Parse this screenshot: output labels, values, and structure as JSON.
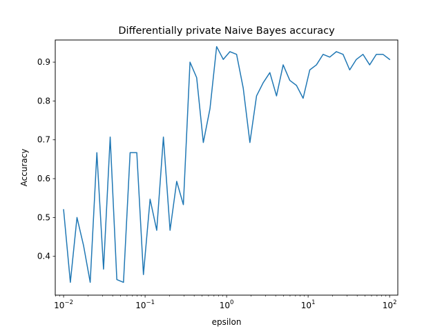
{
  "chart_data": {
    "type": "line",
    "title": "Differentially private Naive Bayes accuracy",
    "xlabel": "epsilon",
    "ylabel": "Accuracy",
    "xscale": "log",
    "xlim": [
      0.0079,
      126
    ],
    "ylim": [
      0.3,
      0.957
    ],
    "grid": false,
    "legend": "none",
    "color": "#1f77b4",
    "x_ticks": [
      {
        "value": 0.01,
        "base": "10",
        "exp": "−2"
      },
      {
        "value": 0.1,
        "base": "10",
        "exp": "−1"
      },
      {
        "value": 1,
        "base": "10",
        "exp": "0"
      },
      {
        "value": 10,
        "base": "10",
        "exp": "1"
      },
      {
        "value": 100,
        "base": "10",
        "exp": "2"
      }
    ],
    "y_ticks": [
      {
        "value": 0.4,
        "label": "0.4"
      },
      {
        "value": 0.5,
        "label": "0.5"
      },
      {
        "value": 0.6,
        "label": "0.6"
      },
      {
        "value": 0.7,
        "label": "0.7"
      },
      {
        "value": 0.8,
        "label": "0.8"
      },
      {
        "value": 0.9,
        "label": "0.9"
      }
    ],
    "series": [
      {
        "x": [
          0.01,
          0.0121,
          0.0146,
          0.0176,
          0.0212,
          0.0256,
          0.0309,
          0.0373,
          0.045,
          0.0543,
          0.0655,
          0.0791,
          0.0954,
          0.1151,
          0.1389,
          0.1677,
          0.2024,
          0.2442,
          0.2947,
          0.3556,
          0.4292,
          0.5179,
          0.625,
          0.7543,
          0.9103,
          1.0985,
          1.3257,
          1.5999,
          1.9307,
          2.33,
          2.8118,
          3.3932,
          4.0949,
          4.9417,
          5.9636,
          7.1969,
          8.6851,
          10.4811,
          12.6486,
          15.2642,
          18.4207,
          22.23,
          26.827,
          32.3746,
          39.0694,
          47.1487,
          56.8987,
          68.6649,
          82.8643,
          100
        ],
        "y": [
          0.52,
          0.333,
          0.5,
          0.427,
          0.333,
          0.667,
          0.367,
          0.707,
          0.34,
          0.333,
          0.667,
          0.667,
          0.353,
          0.547,
          0.467,
          0.707,
          0.467,
          0.593,
          0.533,
          0.9,
          0.86,
          0.693,
          0.78,
          0.94,
          0.907,
          0.927,
          0.92,
          0.833,
          0.693,
          0.813,
          0.847,
          0.873,
          0.813,
          0.893,
          0.853,
          0.84,
          0.807,
          0.88,
          0.893,
          0.92,
          0.913,
          0.927,
          0.92,
          0.88,
          0.907,
          0.92,
          0.893,
          0.92,
          0.92,
          0.907
        ]
      }
    ]
  }
}
